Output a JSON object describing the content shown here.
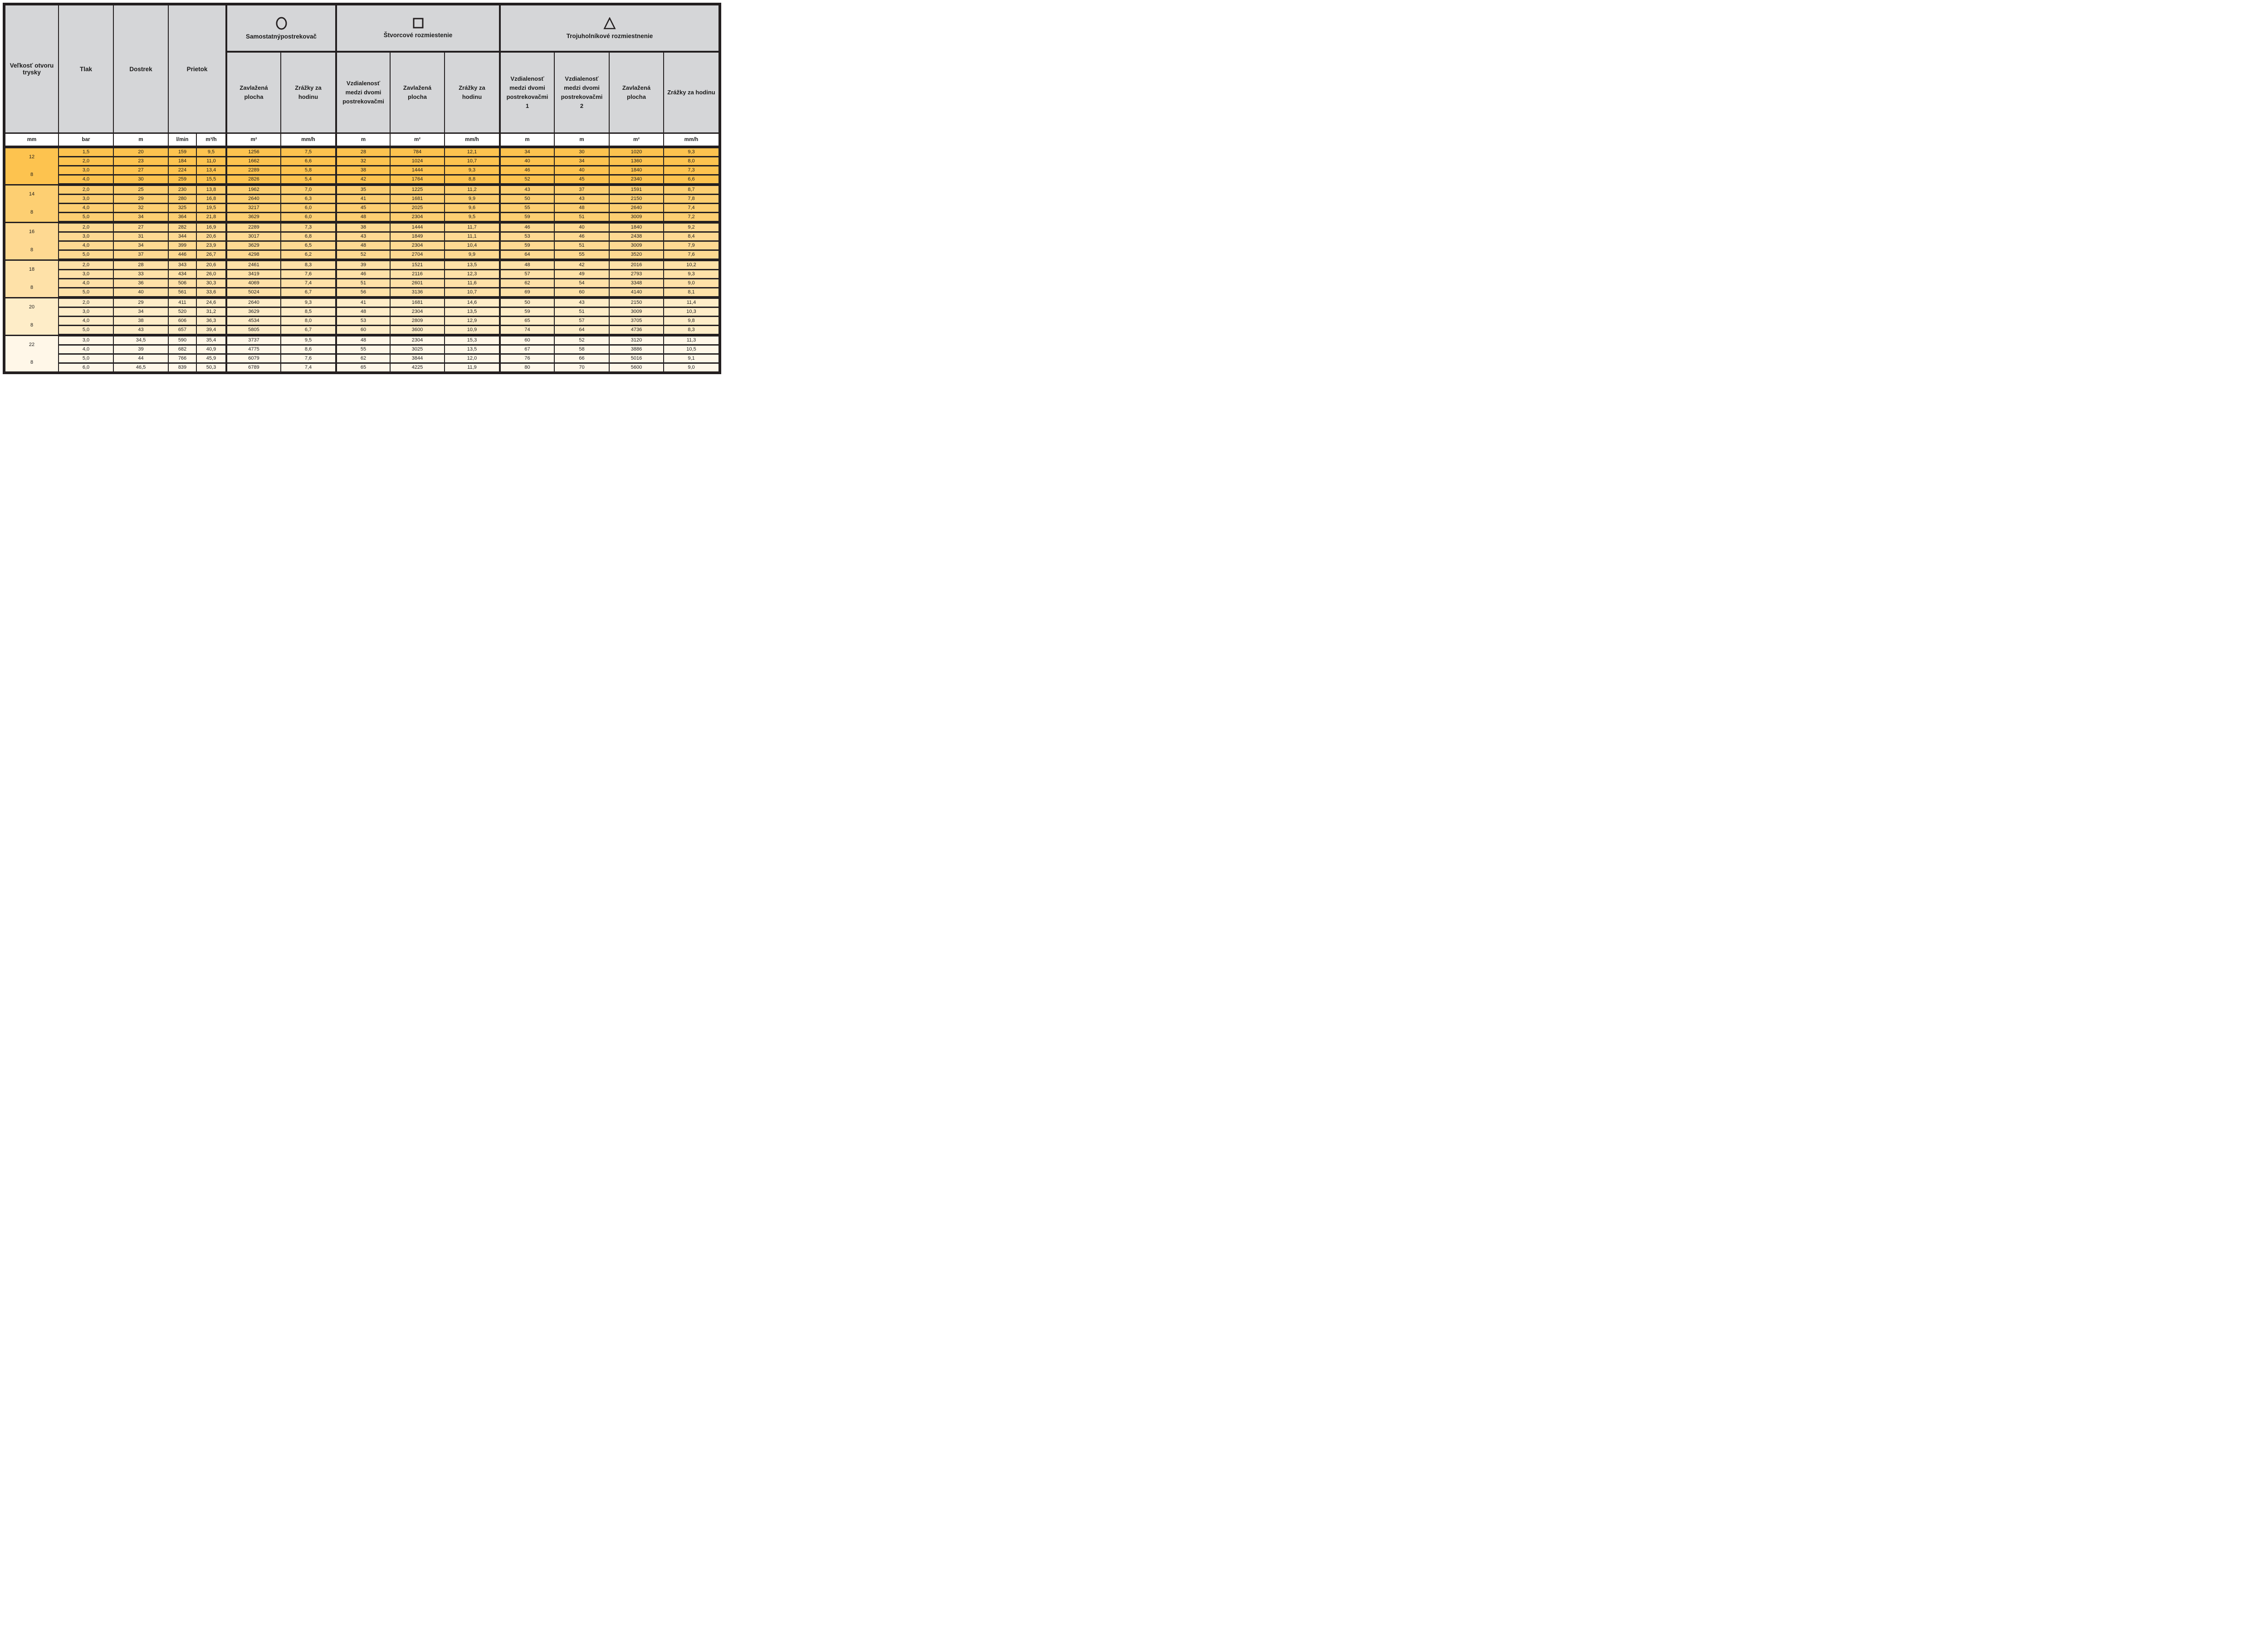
{
  "header": {
    "col_size": "Veľkosť otvoru trysky",
    "col_pressure": "Tlak",
    "col_range": "Dostrek",
    "col_flow": "Prietok",
    "sections": {
      "single": {
        "title": "Samostatnýpostrekovač",
        "icon": "circle-icon",
        "cols": {
          "area": "Zavlažená plocha",
          "rate": "Zrážky za hodinu"
        }
      },
      "square": {
        "title": "Štvorcové rozmiestenie",
        "icon": "square-icon",
        "cols": {
          "dist": "Vzdialenosť medzi dvomi postrekovačmi",
          "area": "Zavlažená plocha",
          "rate": "Zrážky za hodinu"
        }
      },
      "triangle": {
        "title": "Trojuholníkové rozmiestnenie",
        "icon": "triangle-icon",
        "cols": {
          "dist1": "Vzdialenosť medzi dvomi postrekovačmi",
          "dist1_num": "1",
          "dist2": "Vzdialenosť medzi dvomi postrekovačmi",
          "dist2_num": "2",
          "area": "Zavlažená plocha",
          "rate": "Zrážky za hodinu"
        }
      }
    },
    "units": [
      "mm",
      "bar",
      "m",
      "l/min",
      "m³/h",
      "m²",
      "mm/h",
      "m",
      "m²",
      "mm/h",
      "m",
      "m",
      "m²",
      "mm/h"
    ]
  },
  "groups": [
    {
      "size": "12",
      "size2": "8",
      "color": "#FDC34F",
      "rows": [
        [
          "1,5",
          "20",
          "159",
          "9,5",
          "1256",
          "7,5",
          "28",
          "784",
          "12,1",
          "34",
          "30",
          "1020",
          "9,3"
        ],
        [
          "2,0",
          "23",
          "184",
          "11,0",
          "1662",
          "6,6",
          "32",
          "1024",
          "10,7",
          "40",
          "34",
          "1360",
          "8,0"
        ],
        [
          "3,0",
          "27",
          "224",
          "13,4",
          "2289",
          "5,8",
          "38",
          "1444",
          "9,3",
          "46",
          "40",
          "1840",
          "7,3"
        ],
        [
          "4,0",
          "30",
          "259",
          "15,5",
          "2826",
          "5,4",
          "42",
          "1764",
          "8,8",
          "52",
          "45",
          "2340",
          "6,6"
        ]
      ]
    },
    {
      "size": "14",
      "size2": "8",
      "color": "#FDCF72",
      "rows": [
        [
          "2,0",
          "25",
          "230",
          "13,8",
          "1962",
          "7,0",
          "35",
          "1225",
          "11,2",
          "43",
          "37",
          "1591",
          "8,7"
        ],
        [
          "3,0",
          "29",
          "280",
          "16,8",
          "2640",
          "6,3",
          "41",
          "1681",
          "9,9",
          "50",
          "43",
          "2150",
          "7,8"
        ],
        [
          "4,0",
          "32",
          "325",
          "19,5",
          "3217",
          "6,0",
          "45",
          "2025",
          "9,6",
          "55",
          "48",
          "2640",
          "7,4"
        ],
        [
          "5,0",
          "34",
          "364",
          "21,8",
          "3629",
          "6,0",
          "48",
          "2304",
          "9,5",
          "59",
          "51",
          "3009",
          "7,2"
        ]
      ]
    },
    {
      "size": "16",
      "size2": "8",
      "color": "#FED992",
      "rows": [
        [
          "2,0",
          "27",
          "282",
          "16,9",
          "2289",
          "7,3",
          "38",
          "1444",
          "11,7",
          "46",
          "40",
          "1840",
          "9,2"
        ],
        [
          "3,0",
          "31",
          "344",
          "20,6",
          "3017",
          "6,8",
          "43",
          "1849",
          "11,1",
          "53",
          "46",
          "2438",
          "8,4"
        ],
        [
          "4,0",
          "34",
          "399",
          "23,9",
          "3629",
          "6,5",
          "48",
          "2304",
          "10,4",
          "59",
          "51",
          "3009",
          "7,9"
        ],
        [
          "5,0",
          "37",
          "446",
          "26,7",
          "4298",
          "6,2",
          "52",
          "2704",
          "9,9",
          "64",
          "55",
          "3520",
          "7,6"
        ]
      ]
    },
    {
      "size": "18",
      "size2": "8",
      "color": "#FEE1A8",
      "rows": [
        [
          "2,0",
          "28",
          "343",
          "20,6",
          "2461",
          "8,3",
          "39",
          "1521",
          "13,5",
          "48",
          "42",
          "2016",
          "10,2"
        ],
        [
          "3,0",
          "33",
          "434",
          "26,0",
          "3419",
          "7,6",
          "46",
          "2116",
          "12,3",
          "57",
          "49",
          "2793",
          "9,3"
        ],
        [
          "4,0",
          "36",
          "506",
          "30,3",
          "4069",
          "7,4",
          "51",
          "2601",
          "11,6",
          "62",
          "54",
          "3348",
          "9,0"
        ],
        [
          "5,0",
          "40",
          "561",
          "33,6",
          "5024",
          "6,7",
          "56",
          "3136",
          "10,7",
          "69",
          "60",
          "4140",
          "8,1"
        ]
      ]
    },
    {
      "size": "20",
      "size2": "8",
      "color": "#FEEDC8",
      "rows": [
        [
          "2,0",
          "29",
          "411",
          "24,6",
          "2640",
          "9,3",
          "41",
          "1681",
          "14,6",
          "50",
          "43",
          "2150",
          "11,4"
        ],
        [
          "3,0",
          "34",
          "520",
          "31,2",
          "3629",
          "8,5",
          "48",
          "2304",
          "13,5",
          "59",
          "51",
          "3009",
          "10,3"
        ],
        [
          "4,0",
          "38",
          "606",
          "36,3",
          "4534",
          "8,0",
          "53",
          "2809",
          "12,9",
          "65",
          "57",
          "3705",
          "9,8"
        ],
        [
          "5,0",
          "43",
          "657",
          "39,4",
          "5805",
          "6,7",
          "60",
          "3600",
          "10,9",
          "74",
          "64",
          "4736",
          "8,3"
        ]
      ]
    },
    {
      "size": "22",
      "size2": "8",
      "color": "#FFF7E8",
      "rows": [
        [
          "3,0",
          "34,5",
          "590",
          "35,4",
          "3737",
          "9,5",
          "48",
          "2304",
          "15,3",
          "60",
          "52",
          "3120",
          "11,3"
        ],
        [
          "4,0",
          "39",
          "682",
          "40,9",
          "4775",
          "8,6",
          "55",
          "3025",
          "13,5",
          "67",
          "58",
          "3886",
          "10,5"
        ],
        [
          "5,0",
          "44",
          "766",
          "45,9",
          "6079",
          "7,6",
          "62",
          "3844",
          "12,0",
          "76",
          "66",
          "5016",
          "9,1"
        ],
        [
          "6,0",
          "46,5",
          "839",
          "50,3",
          "6789",
          "7,4",
          "65",
          "4225",
          "11,9",
          "80",
          "70",
          "5600",
          "9,0"
        ]
      ]
    }
  ],
  "colors": {
    "border": "#231F20",
    "header_bg": "#D5D6D8",
    "units_bg": "#FFFFFF",
    "page_bg": "#FFFFFF"
  }
}
